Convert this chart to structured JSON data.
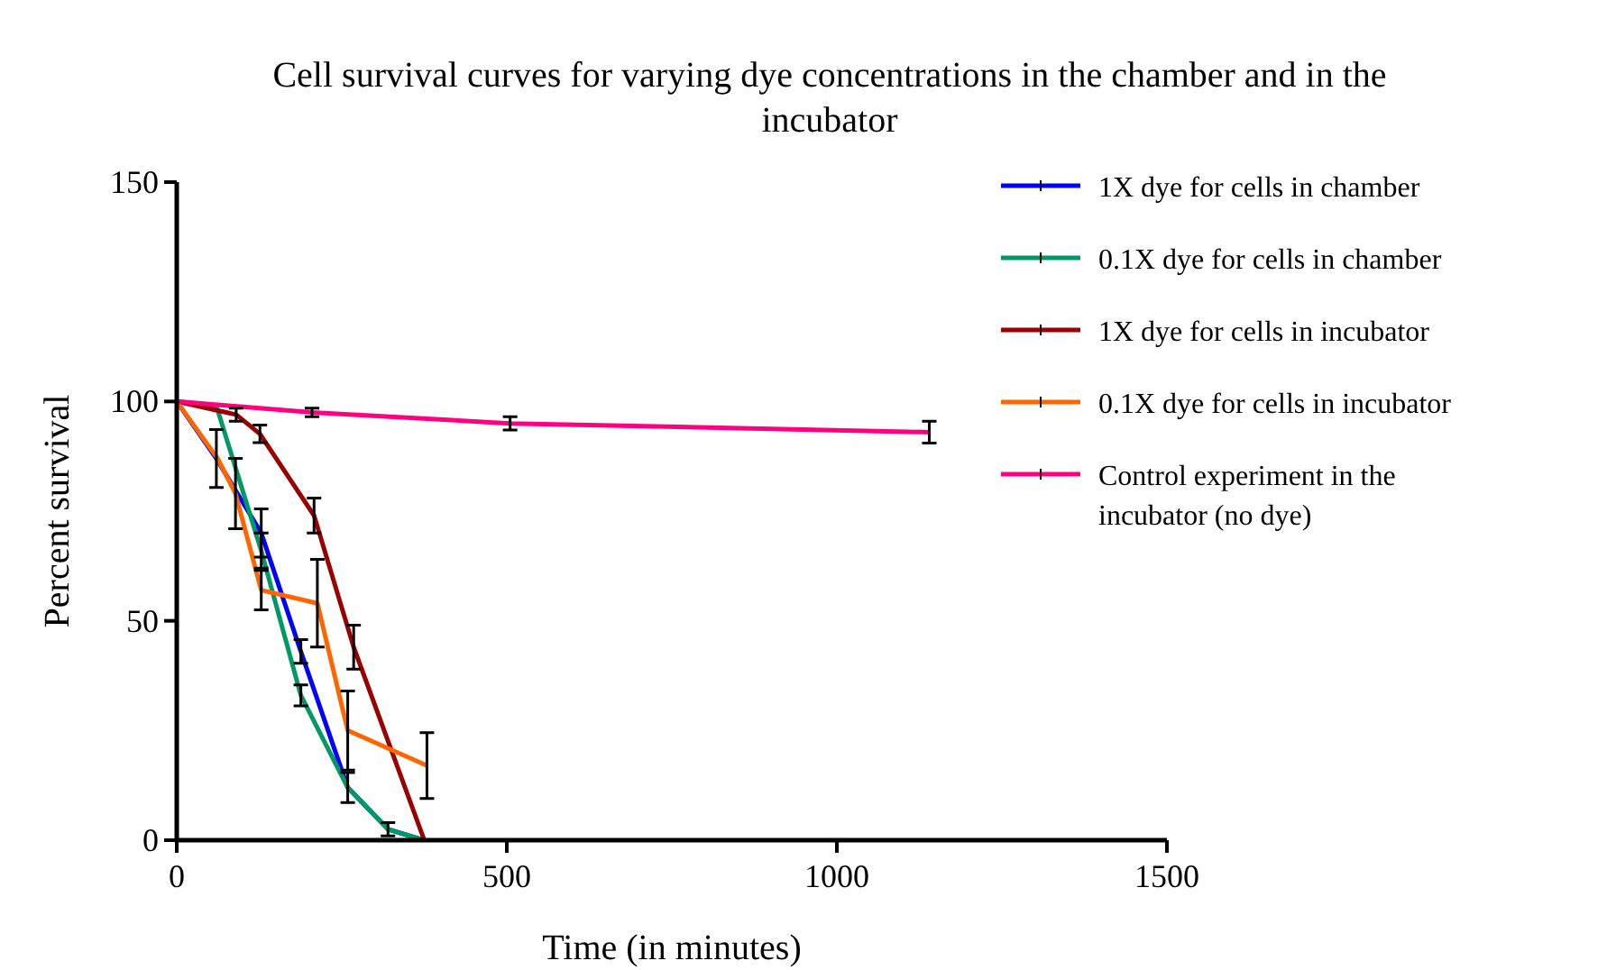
{
  "chart_data": {
    "type": "line",
    "title": "Cell survival curves for varying dye concentrations in the chamber and in the incubator",
    "xlabel": "Time (in minutes)",
    "ylabel": "Percent survival",
    "xlim": [
      0,
      1500
    ],
    "xticks": [
      0,
      500,
      1000,
      1500
    ],
    "ylim": [
      0,
      150
    ],
    "yticks": [
      0,
      50,
      100,
      150
    ],
    "grid": false,
    "legend": "right",
    "series": [
      {
        "name": "1X dye for cells in chamber",
        "color": "#0000ff",
        "x": [
          0,
          60,
          128,
          188,
          259,
          320,
          374
        ],
        "values": [
          100,
          87,
          70,
          43,
          12,
          2.5,
          0
        ],
        "errors": [
          null,
          6.6,
          5.5,
          2.7,
          3.4,
          1.5,
          null
        ]
      },
      {
        "name": "0.1X dye for cells in chamber",
        "color": "#009966",
        "x": [
          0,
          60,
          128,
          188,
          259,
          320,
          374
        ],
        "values": [
          100,
          99,
          66,
          33,
          12,
          2.5,
          0
        ],
        "errors": [
          null,
          null,
          4,
          2.4,
          null,
          null,
          null
        ]
      },
      {
        "name": "1X dye for cells in incubator",
        "color": "#990000",
        "x": [
          0,
          90,
          126,
          208,
          268,
          375
        ],
        "values": [
          100,
          97,
          92.6,
          74,
          44,
          0
        ],
        "errors": [
          null,
          1.5,
          2,
          4,
          5,
          null
        ]
      },
      {
        "name": "0.1X dye for cells in incubator",
        "color": "#ff6600",
        "x": [
          0,
          62,
          89,
          128,
          213,
          259,
          379
        ],
        "values": [
          100,
          87,
          79,
          57,
          54,
          25,
          17
        ],
        "errors": [
          null,
          null,
          8,
          4.5,
          10,
          9,
          7.5
        ]
      },
      {
        "name": "Control experiment in the incubator (no dye)",
        "color": "#ff0080",
        "x": [
          0,
          205,
          505,
          1140
        ],
        "values": [
          100,
          97.5,
          95,
          93
        ],
        "errors": [
          null,
          1,
          1.5,
          2.5
        ]
      }
    ]
  }
}
